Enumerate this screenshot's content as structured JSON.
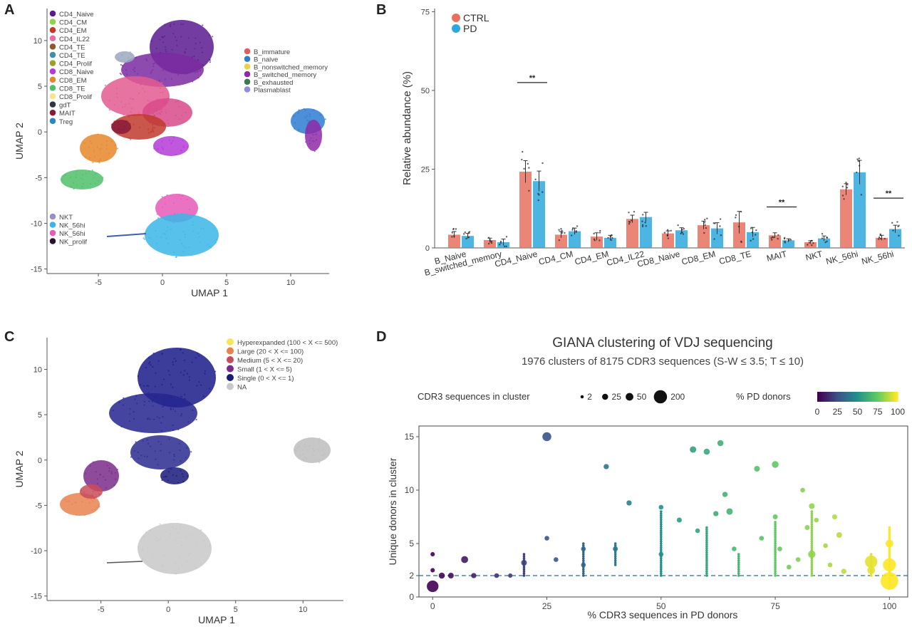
{
  "panel_letters": {
    "a": "A",
    "b": "B",
    "c": "C",
    "d": "D"
  },
  "chart_data": [
    {
      "panel": "A",
      "type": "scatter",
      "xlabel": "UMAP 1",
      "ylabel": "UMAP 2",
      "xticks": [
        -5,
        0,
        5,
        10
      ],
      "yticks": [
        -15,
        -10,
        -5,
        0,
        5,
        10
      ],
      "xlim": [
        -9,
        13
      ],
      "ylim": [
        -15.5,
        13.5
      ],
      "legend_t": [
        {
          "label": "CD4_Naive",
          "color": "#5b1a8f"
        },
        {
          "label": "CD4_CM",
          "color": "#8fd14f"
        },
        {
          "label": "CD4_EM",
          "color": "#c0392b"
        },
        {
          "label": "CD4_IL22",
          "color": "#e86fa6"
        },
        {
          "label": "CD4_TE",
          "color": "#8a5a2b"
        },
        {
          "label": "CD4_TE",
          "color": "#3f8faa"
        },
        {
          "label": "CD4_Prolif",
          "color": "#9aa02b"
        },
        {
          "label": "CD8_Naive",
          "color": "#b43bd6"
        },
        {
          "label": "CD8_EM",
          "color": "#e6862a"
        },
        {
          "label": "CD8_TE",
          "color": "#4fbf6a"
        },
        {
          "label": "CD8_Prolif",
          "color": "#f5e68c"
        },
        {
          "label": "gdT",
          "color": "#333344"
        },
        {
          "label": "MAIT",
          "color": "#8a1a3a"
        },
        {
          "label": "Treg",
          "color": "#2e86c1"
        }
      ],
      "legend_b": [
        {
          "label": "B_immature",
          "color": "#e35b5b"
        },
        {
          "label": "B_naive",
          "color": "#2e7bd1"
        },
        {
          "label": "B_nonswitched_memory",
          "color": "#f0d04a"
        },
        {
          "label": "B_switched_memory",
          "color": "#8e2aa8"
        },
        {
          "label": "B_exhausted",
          "color": "#3b7a4a"
        },
        {
          "label": "Plasmablast",
          "color": "#8c8ce0"
        }
      ],
      "legend_nk": [
        {
          "label": "NKT",
          "color": "#9b8cc8"
        },
        {
          "label": "NK_56hi",
          "color": "#3bb6e8"
        },
        {
          "label": "NK_56hi",
          "color": "#e659b8"
        },
        {
          "label": "NK_prolif",
          "color": "#2b1030"
        }
      ]
    },
    {
      "panel": "B",
      "type": "bar",
      "ylabel": "Relative abundance (%)",
      "yticks": [
        0,
        25,
        50,
        75
      ],
      "ylim": [
        0,
        76
      ],
      "legend": [
        {
          "name": "CTRL",
          "color": "#e8705f"
        },
        {
          "name": "PD",
          "color": "#2ea8dc"
        }
      ],
      "categories": [
        "B_Naive",
        "B_switched_memory",
        "CD4_Naive",
        "CD4_CM",
        "CD4_EM",
        "CD4_IL22",
        "CD8_Naive",
        "CD8_EM",
        "CD8_TE",
        "MAIT",
        "NKT",
        "NK_56hi",
        "NK_56hi"
      ],
      "series": [
        {
          "name": "CTRL",
          "values": [
            4.2,
            2.5,
            24.2,
            4.2,
            3.6,
            9.2,
            4.6,
            7.2,
            8.1,
            4.0,
            1.8,
            18.6,
            3.2
          ],
          "errors": [
            1.0,
            0.6,
            3.5,
            1.0,
            1.2,
            1.2,
            0.8,
            1.3,
            3.5,
            0.8,
            0.5,
            1.8,
            0.8
          ]
        },
        {
          "name": "PD",
          "values": [
            3.8,
            1.8,
            21.2,
            5.3,
            3.2,
            9.8,
            5.6,
            6.2,
            5.0,
            2.4,
            3.0,
            24.0,
            6.0
          ],
          "errors": [
            0.8,
            1.0,
            3.2,
            1.0,
            0.8,
            1.5,
            0.8,
            1.8,
            1.5,
            0.5,
            0.8,
            3.8,
            1.2
          ]
        }
      ],
      "significance": [
        {
          "category": "CD4_Naive",
          "label": "**"
        },
        {
          "category": "MAIT",
          "label": "**"
        },
        {
          "category": "NK_56hi",
          "label": "**"
        }
      ]
    },
    {
      "panel": "C",
      "type": "scatter",
      "xlabel": "UMAP 1",
      "ylabel": "UMAP 2",
      "xticks": [
        -5,
        0,
        5,
        10
      ],
      "yticks": [
        -15,
        -10,
        -5,
        0,
        5,
        10
      ],
      "legend": [
        {
          "label": "Hyperexpanded (100 < X <= 500)",
          "color": "#f5e65a"
        },
        {
          "label": "Large (20 < X <= 100)",
          "color": "#e8824f"
        },
        {
          "label": "Medium (5 < X <= 20)",
          "color": "#c94c5a"
        },
        {
          "label": "Small (1 < X <= 5)",
          "color": "#7a2a8a"
        },
        {
          "label": "Single (0 < X <= 1)",
          "color": "#1a1a7a"
        },
        {
          "label": "NA",
          "color": "#c8c8c8"
        }
      ]
    },
    {
      "panel": "D",
      "type": "scatter",
      "title": "GIANA clustering of VDJ sequencing",
      "subtitle": "1976 clusters of 8175 CDR3 sequences (S-W ≤ 3.5; T ≤ 10)",
      "xlabel": "% CDR3 sequences in PD donors",
      "ylabel": "Unique donors in cluster",
      "xticks": [
        0,
        25,
        50,
        75,
        100
      ],
      "yticks": [
        0,
        2,
        5,
        10,
        15
      ],
      "xlim": [
        -3,
        104
      ],
      "ylim": [
        0,
        16
      ],
      "reference_line_y": 2,
      "size_legend": {
        "title": "CDR3 sequences in cluster",
        "labels": [
          "2",
          "25",
          "50",
          "200"
        ]
      },
      "color_legend": {
        "title": "% PD donors",
        "ticks": [
          "0",
          "25",
          "50",
          "75",
          "100"
        ]
      },
      "points": [
        {
          "x": 0,
          "y": 1,
          "n": 60
        },
        {
          "x": 0,
          "y": 4,
          "n": 3
        },
        {
          "x": 0,
          "y": 2.5,
          "n": 3
        },
        {
          "x": 2,
          "y": 2,
          "n": 10
        },
        {
          "x": 4,
          "y": 2,
          "n": 8
        },
        {
          "x": 7,
          "y": 3.5,
          "n": 15
        },
        {
          "x": 9,
          "y": 2,
          "n": 6
        },
        {
          "x": 14,
          "y": 2,
          "n": 4
        },
        {
          "x": 17,
          "y": 2,
          "n": 3
        },
        {
          "x": 20,
          "y": 3.2,
          "n": 8
        },
        {
          "x": 25,
          "y": 15,
          "n": 30
        },
        {
          "x": 25,
          "y": 5.5,
          "n": 4
        },
        {
          "x": 27,
          "y": 3.5,
          "n": 4
        },
        {
          "x": 33,
          "y": 4.5,
          "n": 4
        },
        {
          "x": 33,
          "y": 3,
          "n": 4
        },
        {
          "x": 38,
          "y": 12.2,
          "n": 6
        },
        {
          "x": 40,
          "y": 4.5,
          "n": 5
        },
        {
          "x": 43,
          "y": 8.8,
          "n": 6
        },
        {
          "x": 50,
          "y": 8.4,
          "n": 4
        },
        {
          "x": 50,
          "y": 4,
          "n": 4
        },
        {
          "x": 54,
          "y": 7.2,
          "n": 5
        },
        {
          "x": 57,
          "y": 13.8,
          "n": 12
        },
        {
          "x": 58,
          "y": 6.2,
          "n": 4
        },
        {
          "x": 60,
          "y": 13.6,
          "n": 10
        },
        {
          "x": 62,
          "y": 7.8,
          "n": 6
        },
        {
          "x": 63,
          "y": 14.4,
          "n": 10
        },
        {
          "x": 64,
          "y": 9.6,
          "n": 6
        },
        {
          "x": 65,
          "y": 8,
          "n": 12
        },
        {
          "x": 66,
          "y": 4.5,
          "n": 4
        },
        {
          "x": 71,
          "y": 12,
          "n": 8
        },
        {
          "x": 72,
          "y": 5.5,
          "n": 4
        },
        {
          "x": 75,
          "y": 12.4,
          "n": 14
        },
        {
          "x": 75,
          "y": 7.5,
          "n": 5
        },
        {
          "x": 76,
          "y": 4.5,
          "n": 4
        },
        {
          "x": 78,
          "y": 2.8,
          "n": 4
        },
        {
          "x": 80,
          "y": 3.5,
          "n": 4
        },
        {
          "x": 81,
          "y": 10,
          "n": 4
        },
        {
          "x": 82,
          "y": 6.5,
          "n": 5
        },
        {
          "x": 83,
          "y": 8.5,
          "n": 8
        },
        {
          "x": 83,
          "y": 4,
          "n": 18
        },
        {
          "x": 84,
          "y": 7.2,
          "n": 4
        },
        {
          "x": 86,
          "y": 4.8,
          "n": 4
        },
        {
          "x": 87,
          "y": 3,
          "n": 4
        },
        {
          "x": 88,
          "y": 7.5,
          "n": 5
        },
        {
          "x": 89,
          "y": 5.8,
          "n": 8
        },
        {
          "x": 90,
          "y": 2.4,
          "n": 6
        },
        {
          "x": 96,
          "y": 3.3,
          "n": 70
        },
        {
          "x": 96,
          "y": 2.5,
          "n": 20
        },
        {
          "x": 100,
          "y": 1.5,
          "n": 160
        },
        {
          "x": 100,
          "y": 3,
          "n": 80
        },
        {
          "x": 100,
          "y": 5,
          "n": 20
        }
      ],
      "strips": [
        {
          "x": 20,
          "y0": 2,
          "y1": 4
        },
        {
          "x": 33,
          "y0": 2,
          "y1": 5
        },
        {
          "x": 40,
          "y0": 3,
          "y1": 5
        },
        {
          "x": 50,
          "y0": 2,
          "y1": 8
        },
        {
          "x": 60,
          "y0": 2,
          "y1": 6.5
        },
        {
          "x": 67,
          "y0": 2,
          "y1": 4
        },
        {
          "x": 75,
          "y0": 2,
          "y1": 7
        },
        {
          "x": 83,
          "y0": 2,
          "y1": 8
        },
        {
          "x": 96,
          "y0": 2,
          "y1": 4
        },
        {
          "x": 100,
          "y0": 0.8,
          "y1": 6.5
        }
      ]
    }
  ]
}
